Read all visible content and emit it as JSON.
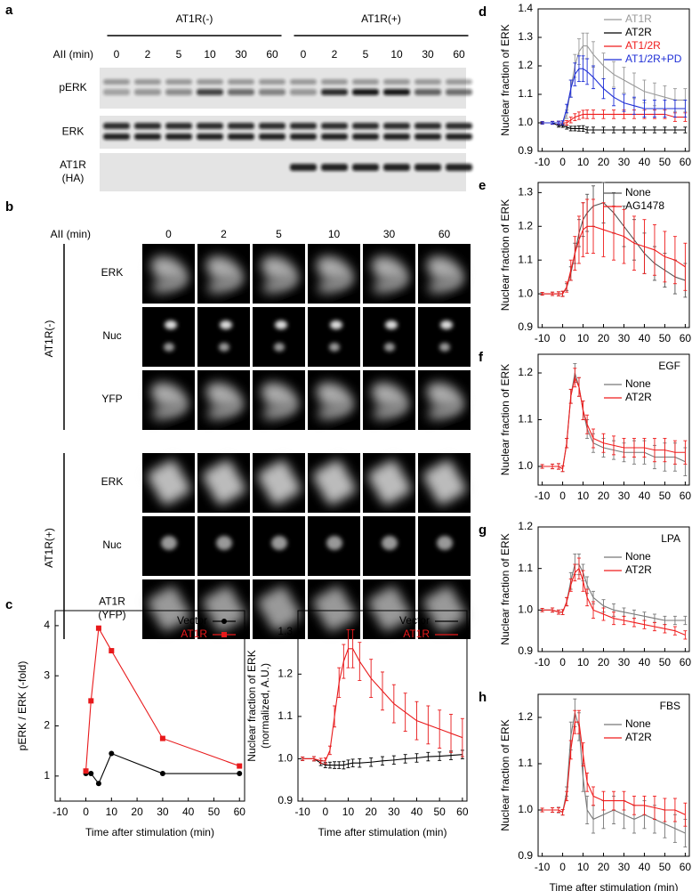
{
  "blot": {
    "panel": "a",
    "time_label": "AII (min)",
    "groups": [
      "AT1R(-)",
      "AT1R(+)"
    ],
    "times": [
      0,
      2,
      5,
      10,
      30,
      60,
      0,
      2,
      5,
      10,
      30,
      60
    ],
    "rows": [
      "pERK",
      "ERK",
      [
        "AT1R",
        "(HA)"
      ]
    ]
  },
  "imaging": {
    "panel": "b",
    "time_label": "AII (min)",
    "times": [
      0,
      2,
      5,
      10,
      30,
      60
    ],
    "groups": [
      {
        "name": "AT1R(-)",
        "rows": [
          "ERK",
          "Nuc",
          "YFP"
        ]
      },
      {
        "name": "AT1R(+)",
        "rows": [
          "ERK",
          "Nuc",
          [
            "AT1R",
            "(YFP)"
          ]
        ]
      }
    ]
  },
  "chart_data": [
    {
      "type": "line",
      "panel": "c",
      "y_label": "pERK / ERK (-fold)",
      "x_label": "Time after stimulation (min)",
      "x": [
        0,
        2,
        5,
        10,
        30,
        60
      ],
      "xlim": [
        -12,
        62
      ],
      "xticks": [
        -10,
        0,
        10,
        20,
        30,
        40,
        50,
        60
      ],
      "ylim": [
        0.5,
        4.3
      ],
      "yticks": [
        1,
        2,
        3,
        4
      ],
      "series": [
        {
          "name": "Vector",
          "color": "#000000",
          "marker": "circle",
          "values": [
            1.05,
            1.05,
            0.85,
            1.45,
            1.05,
            1.05
          ]
        },
        {
          "name": "AT1R",
          "color": "#e8191b",
          "marker": "square",
          "values": [
            1.1,
            2.5,
            3.95,
            3.5,
            1.75,
            1.2
          ]
        }
      ]
    },
    {
      "type": "line",
      "y_label": [
        "Nuclear fraction of ERK",
        "(normalized, A.U.)"
      ],
      "x_label": "Time after stimulation (min)",
      "x": [
        -10,
        -5,
        -2,
        0,
        2,
        4,
        6,
        8,
        10,
        12,
        15,
        20,
        25,
        30,
        35,
        40,
        45,
        50,
        55,
        60
      ],
      "xlim": [
        -12,
        62
      ],
      "xticks": [
        -10,
        0,
        10,
        20,
        30,
        40,
        50,
        60
      ],
      "ylim": [
        0.9,
        1.35
      ],
      "yticks": [
        0.9,
        {
          "value": 1,
          "label": "1.0"
        },
        1.1,
        1.2,
        1.3
      ],
      "series": [
        {
          "name": "Vector",
          "color": "#000000",
          "values": [
            1.0,
            1.0,
            0.99,
            0.985,
            0.985,
            0.985,
            0.985,
            0.985,
            0.988,
            0.99,
            0.99,
            0.992,
            0.995,
            0.997,
            1.0,
            1.002,
            1.005,
            1.006,
            1.008,
            1.01
          ],
          "errors": [
            0.004,
            0.005,
            0.006,
            0.006,
            0.007,
            0.008,
            0.008,
            0.009,
            0.009,
            0.009,
            0.01,
            0.01,
            0.01,
            0.01,
            0.01,
            0.01,
            0.01,
            0.01,
            0.01,
            0.01
          ]
        },
        {
          "name": "AT1R",
          "color": "#e8191b",
          "values": [
            1.0,
            1.0,
            0.995,
            0.995,
            1.02,
            1.1,
            1.18,
            1.23,
            1.26,
            1.26,
            1.23,
            1.19,
            1.16,
            1.13,
            1.11,
            1.09,
            1.08,
            1.07,
            1.06,
            1.05
          ],
          "errors": [
            0.004,
            0.005,
            0.006,
            0.007,
            0.01,
            0.025,
            0.035,
            0.04,
            0.045,
            0.045,
            0.045,
            0.045,
            0.045,
            0.045,
            0.045,
            0.045,
            0.045,
            0.045,
            0.045,
            0.045
          ]
        }
      ]
    },
    {
      "type": "line",
      "panel": "d",
      "y_label": "Nuclear fraction of ERK",
      "x": [
        -10,
        -5,
        -2,
        0,
        2,
        4,
        6,
        8,
        10,
        12,
        15,
        20,
        25,
        30,
        35,
        40,
        45,
        50,
        55,
        60
      ],
      "xlim": [
        -12,
        62
      ],
      "xticks": [
        -10,
        0,
        10,
        20,
        30,
        40,
        50,
        60
      ],
      "ylim": [
        0.9,
        1.4
      ],
      "yticks": [
        0.9,
        {
          "value": 1,
          "label": "1.0"
        },
        1.1,
        1.2,
        1.3,
        1.4
      ],
      "series": [
        {
          "name": "AT1R",
          "color": "#999999",
          "values": [
            1.0,
            1.0,
            1.0,
            1.0,
            1.03,
            1.12,
            1.2,
            1.25,
            1.27,
            1.27,
            1.24,
            1.2,
            1.17,
            1.15,
            1.13,
            1.11,
            1.1,
            1.09,
            1.08,
            1.08
          ],
          "errors": [
            0.005,
            0.005,
            0.006,
            0.007,
            0.015,
            0.03,
            0.04,
            0.045,
            0.045,
            0.045,
            0.045,
            0.045,
            0.045,
            0.045,
            0.045,
            0.04,
            0.04,
            0.04,
            0.04,
            0.04
          ]
        },
        {
          "name": "AT2R",
          "color": "#000000",
          "values": [
            1.0,
            1.0,
            0.99,
            0.99,
            0.985,
            0.98,
            0.98,
            0.98,
            0.98,
            0.975,
            0.975,
            0.975,
            0.975,
            0.975,
            0.975,
            0.975,
            0.975,
            0.975,
            0.975,
            0.975
          ],
          "errors": [
            0.004,
            0.005,
            0.005,
            0.006,
            0.007,
            0.008,
            0.008,
            0.009,
            0.01,
            0.01,
            0.01,
            0.01,
            0.01,
            0.01,
            0.01,
            0.01,
            0.01,
            0.01,
            0.01,
            0.01
          ]
        },
        {
          "name": "AT1/2R",
          "color": "#ef1c1c",
          "values": [
            1.0,
            1.0,
            1.0,
            1.0,
            1.0,
            1.01,
            1.02,
            1.025,
            1.03,
            1.03,
            1.03,
            1.03,
            1.03,
            1.03,
            1.03,
            1.03,
            1.03,
            1.03,
            1.02,
            1.02
          ],
          "errors": [
            0.004,
            0.005,
            0.005,
            0.006,
            0.008,
            0.01,
            0.012,
            0.013,
            0.014,
            0.015,
            0.015,
            0.015,
            0.015,
            0.015,
            0.015,
            0.015,
            0.015,
            0.015,
            0.015,
            0.015
          ]
        },
        {
          "name": "AT1/2R+PD",
          "color": "#1f2fd6",
          "values": [
            1.0,
            1.0,
            1.0,
            1.0,
            1.05,
            1.12,
            1.17,
            1.19,
            1.19,
            1.18,
            1.16,
            1.12,
            1.09,
            1.07,
            1.06,
            1.05,
            1.05,
            1.05,
            1.05,
            1.05
          ],
          "errors": [
            0.004,
            0.005,
            0.006,
            0.007,
            0.015,
            0.03,
            0.04,
            0.045,
            0.045,
            0.045,
            0.04,
            0.035,
            0.03,
            0.03,
            0.03,
            0.03,
            0.03,
            0.03,
            0.03,
            0.03
          ]
        }
      ]
    },
    {
      "type": "line",
      "panel": "e",
      "y_label": "Nuclear fraction of ERK",
      "x": [
        -10,
        -5,
        -2,
        0,
        2,
        4,
        6,
        8,
        10,
        12,
        15,
        20,
        25,
        30,
        35,
        40,
        45,
        50,
        55,
        60
      ],
      "xlim": [
        -12,
        62
      ],
      "xticks": [
        -10,
        0,
        10,
        20,
        30,
        40,
        50,
        60
      ],
      "ylim": [
        0.9,
        1.33
      ],
      "yticks": [
        0.9,
        {
          "value": 1,
          "label": "1.0"
        },
        1.1,
        1.2,
        1.3
      ],
      "series": [
        {
          "name": "None",
          "color": "#555555",
          "values": [
            1.0,
            1.0,
            1.0,
            1.0,
            1.02,
            1.06,
            1.12,
            1.18,
            1.22,
            1.24,
            1.26,
            1.27,
            1.24,
            1.2,
            1.16,
            1.12,
            1.09,
            1.07,
            1.05,
            1.04
          ],
          "errors": [
            0.004,
            0.005,
            0.006,
            0.007,
            0.01,
            0.02,
            0.03,
            0.04,
            0.05,
            0.055,
            0.06,
            0.06,
            0.06,
            0.06,
            0.06,
            0.06,
            0.05,
            0.05,
            0.05,
            0.05
          ]
        },
        {
          "name": "AG1478",
          "color": "#ef1c1c",
          "values": [
            1.0,
            1.0,
            1.0,
            1.0,
            1.02,
            1.07,
            1.12,
            1.16,
            1.19,
            1.2,
            1.2,
            1.19,
            1.18,
            1.17,
            1.15,
            1.14,
            1.13,
            1.11,
            1.1,
            1.08
          ],
          "errors": [
            0.004,
            0.005,
            0.006,
            0.008,
            0.015,
            0.03,
            0.05,
            0.07,
            0.08,
            0.08,
            0.08,
            0.08,
            0.08,
            0.08,
            0.08,
            0.08,
            0.075,
            0.075,
            0.07,
            0.07
          ]
        }
      ]
    },
    {
      "type": "line",
      "panel": "f",
      "y_label": "Nuclear fraction of ERK",
      "annotation": "EGF",
      "x": [
        -10,
        -5,
        -2,
        0,
        2,
        4,
        6,
        8,
        10,
        12,
        15,
        20,
        25,
        30,
        35,
        40,
        45,
        50,
        55,
        60
      ],
      "xlim": [
        -12,
        62
      ],
      "xticks": [
        -10,
        0,
        10,
        20,
        30,
        40,
        50,
        60
      ],
      "ylim": [
        0.96,
        1.24
      ],
      "yticks": [
        {
          "value": 1,
          "label": "1.0"
        },
        1.1,
        1.2
      ],
      "series": [
        {
          "name": "None",
          "color": "#777777",
          "values": [
            1.0,
            1.0,
            1.0,
            0.995,
            1.05,
            1.15,
            1.2,
            1.17,
            1.12,
            1.08,
            1.05,
            1.04,
            1.035,
            1.03,
            1.03,
            1.03,
            1.02,
            1.02,
            1.02,
            1.01
          ],
          "errors": [
            0.004,
            0.005,
            0.006,
            0.006,
            0.01,
            0.015,
            0.02,
            0.02,
            0.02,
            0.02,
            0.02,
            0.02,
            0.02,
            0.02,
            0.025,
            0.025,
            0.025,
            0.03,
            0.03,
            0.03
          ]
        },
        {
          "name": "AT2R",
          "color": "#ef1c1c",
          "values": [
            1.0,
            1.0,
            1.0,
            0.995,
            1.05,
            1.15,
            1.19,
            1.17,
            1.12,
            1.09,
            1.06,
            1.05,
            1.045,
            1.04,
            1.04,
            1.04,
            1.035,
            1.035,
            1.03,
            1.03
          ],
          "errors": [
            0.004,
            0.005,
            0.006,
            0.006,
            0.01,
            0.015,
            0.02,
            0.02,
            0.02,
            0.02,
            0.02,
            0.02,
            0.02,
            0.02,
            0.02,
            0.02,
            0.025,
            0.025,
            0.025,
            0.025
          ]
        }
      ]
    },
    {
      "type": "line",
      "panel": "g",
      "y_label": "Nuclear fraction of ERK",
      "annotation": "LPA",
      "x": [
        -10,
        -5,
        -2,
        0,
        2,
        4,
        6,
        8,
        10,
        12,
        15,
        20,
        25,
        30,
        35,
        40,
        45,
        50,
        55,
        60
      ],
      "xlim": [
        -12,
        62
      ],
      "xticks": [
        -10,
        0,
        10,
        20,
        30,
        40,
        50,
        60
      ],
      "ylim": [
        0.9,
        1.2
      ],
      "yticks": [
        0.9,
        {
          "value": 1,
          "label": "1.0"
        },
        1.1,
        1.2
      ],
      "series": [
        {
          "name": "None",
          "color": "#777777",
          "values": [
            1.0,
            1.0,
            0.995,
            0.995,
            1.02,
            1.07,
            1.11,
            1.11,
            1.09,
            1.06,
            1.03,
            1.01,
            1.0,
            0.995,
            0.99,
            0.985,
            0.98,
            0.975,
            0.975,
            0.975
          ],
          "errors": [
            0.004,
            0.005,
            0.005,
            0.006,
            0.01,
            0.02,
            0.025,
            0.025,
            0.02,
            0.02,
            0.015,
            0.015,
            0.015,
            0.01,
            0.01,
            0.01,
            0.01,
            0.01,
            0.01,
            0.01
          ]
        },
        {
          "name": "AT2R",
          "color": "#ef1c1c",
          "values": [
            1.0,
            1.0,
            0.995,
            0.995,
            1.02,
            1.06,
            1.09,
            1.1,
            1.07,
            1.03,
            1.0,
            0.99,
            0.98,
            0.975,
            0.97,
            0.965,
            0.96,
            0.955,
            0.95,
            0.94
          ],
          "errors": [
            0.004,
            0.005,
            0.005,
            0.006,
            0.01,
            0.015,
            0.02,
            0.025,
            0.025,
            0.02,
            0.02,
            0.015,
            0.015,
            0.01,
            0.01,
            0.01,
            0.01,
            0.01,
            0.01,
            0.01
          ]
        }
      ]
    },
    {
      "type": "line",
      "panel": "h",
      "y_label": "Nuclear fraction of ERK",
      "x_label": "Time after stimulation (min)",
      "annotation": "FBS",
      "x": [
        -10,
        -5,
        -2,
        0,
        2,
        4,
        6,
        8,
        10,
        12,
        15,
        20,
        25,
        30,
        35,
        40,
        45,
        50,
        55,
        60
      ],
      "xlim": [
        -12,
        62
      ],
      "xticks": [
        -10,
        0,
        10,
        20,
        30,
        40,
        50,
        60
      ],
      "ylim": [
        0.9,
        1.25
      ],
      "yticks": [
        0.9,
        {
          "value": 1,
          "label": "1.0"
        },
        1.1,
        1.2
      ],
      "series": [
        {
          "name": "None",
          "color": "#777777",
          "values": [
            1.0,
            1.0,
            1.0,
            0.995,
            1.04,
            1.16,
            1.21,
            1.18,
            1.07,
            1.0,
            0.98,
            0.99,
            1.0,
            0.99,
            0.98,
            0.99,
            0.98,
            0.97,
            0.96,
            0.95
          ],
          "errors": [
            0.004,
            0.005,
            0.006,
            0.006,
            0.01,
            0.03,
            0.03,
            0.03,
            0.03,
            0.03,
            0.03,
            0.03,
            0.03,
            0.03,
            0.03,
            0.03,
            0.03,
            0.03,
            0.03,
            0.03
          ]
        },
        {
          "name": "AT2R",
          "color": "#ef1c1c",
          "values": [
            1.0,
            1.0,
            1.0,
            0.995,
            1.03,
            1.13,
            1.19,
            1.19,
            1.12,
            1.06,
            1.03,
            1.02,
            1.02,
            1.02,
            1.01,
            1.01,
            1.005,
            1.0,
            1.0,
            0.99
          ],
          "errors": [
            0.004,
            0.005,
            0.005,
            0.006,
            0.01,
            0.02,
            0.025,
            0.025,
            0.025,
            0.02,
            0.02,
            0.02,
            0.02,
            0.02,
            0.02,
            0.02,
            0.025,
            0.025,
            0.025,
            0.025
          ]
        }
      ]
    }
  ]
}
